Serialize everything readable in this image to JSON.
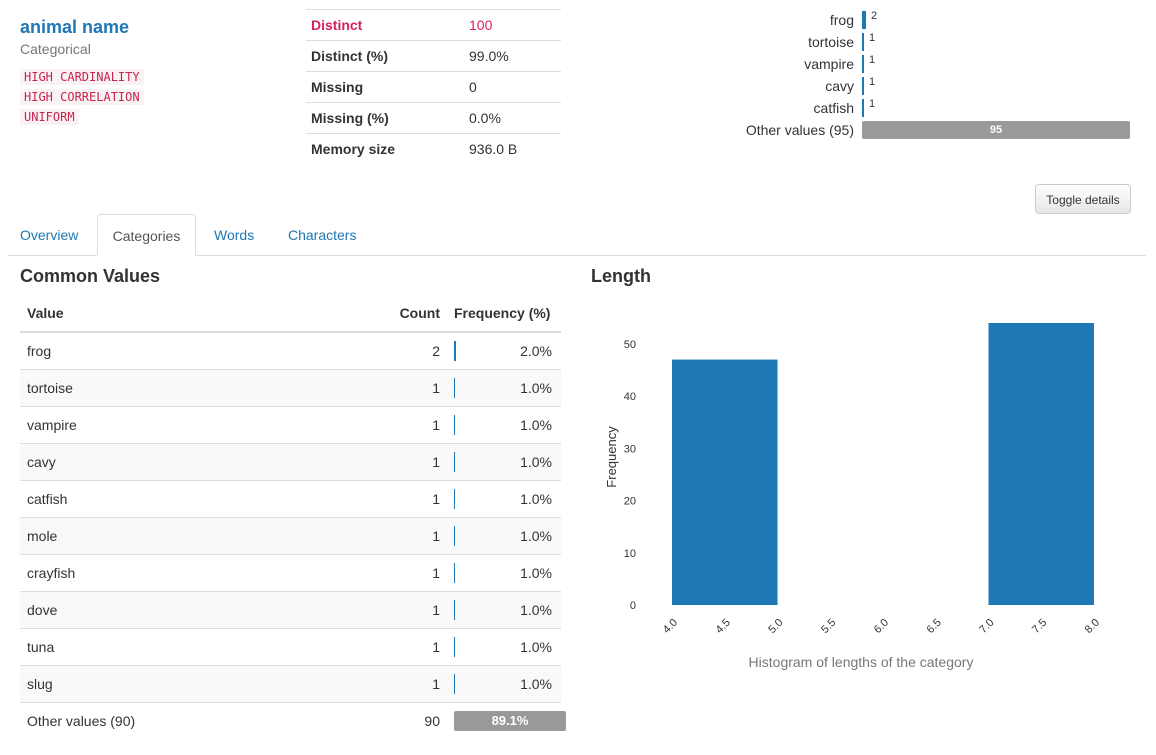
{
  "variable": {
    "name": "animal name",
    "type": "Categorical",
    "badges": [
      "HIGH CARDINALITY",
      "HIGH CORRELATION",
      "UNIFORM"
    ]
  },
  "stats": [
    {
      "key": "Distinct",
      "value": "100"
    },
    {
      "key": "Distinct (%)",
      "value": "99.0%"
    },
    {
      "key": "Missing",
      "value": "0"
    },
    {
      "key": "Missing (%)",
      "value": "0.0%"
    },
    {
      "key": "Memory size",
      "value": "936.0 B"
    }
  ],
  "mini_values": [
    {
      "label": "frog",
      "count": "2"
    },
    {
      "label": "tortoise",
      "count": "1"
    },
    {
      "label": "vampire",
      "count": "1"
    },
    {
      "label": "cavy",
      "count": "1"
    },
    {
      "label": "catfish",
      "count": "1"
    },
    {
      "label": "Other values (95)",
      "count": "95"
    }
  ],
  "toggle_label": "Toggle details",
  "tabs": [
    "Overview",
    "Categories",
    "Words",
    "Characters"
  ],
  "active_tab": "Categories",
  "common_values": {
    "title": "Common Values",
    "headers": [
      "Value",
      "Count",
      "Frequency (%)"
    ],
    "rows": [
      {
        "value": "frog",
        "count": "2",
        "freq": "2.0%"
      },
      {
        "value": "tortoise",
        "count": "1",
        "freq": "1.0%"
      },
      {
        "value": "vampire",
        "count": "1",
        "freq": "1.0%"
      },
      {
        "value": "cavy",
        "count": "1",
        "freq": "1.0%"
      },
      {
        "value": "catfish",
        "count": "1",
        "freq": "1.0%"
      },
      {
        "value": "mole",
        "count": "1",
        "freq": "1.0%"
      },
      {
        "value": "crayfish",
        "count": "1",
        "freq": "1.0%"
      },
      {
        "value": "dove",
        "count": "1",
        "freq": "1.0%"
      },
      {
        "value": "tuna",
        "count": "1",
        "freq": "1.0%"
      },
      {
        "value": "slug",
        "count": "1",
        "freq": "1.0%"
      }
    ],
    "other": {
      "value": "Other values (90)",
      "count": "90",
      "freq": "89.1%"
    }
  },
  "length_title": "Length",
  "colors": {
    "accent": "#1f77b4",
    "alert": "#d6225a",
    "other_bar": "#999999"
  },
  "chart_data": {
    "type": "bar",
    "bins": [
      [
        4.0,
        5.0
      ],
      [
        7.0,
        8.0
      ]
    ],
    "values": [
      47,
      54
    ],
    "xlabel": "Histogram of lengths of the category",
    "ylabel": "Frequency",
    "xlim": [
      4.0,
      8.0
    ],
    "ylim": [
      0,
      54
    ],
    "xticks": [
      "4.0",
      "4.5",
      "5.0",
      "5.5",
      "6.0",
      "6.5",
      "7.0",
      "7.5",
      "8.0"
    ],
    "yticks": [
      "0",
      "10",
      "20",
      "30",
      "40",
      "50"
    ],
    "grid": false
  }
}
